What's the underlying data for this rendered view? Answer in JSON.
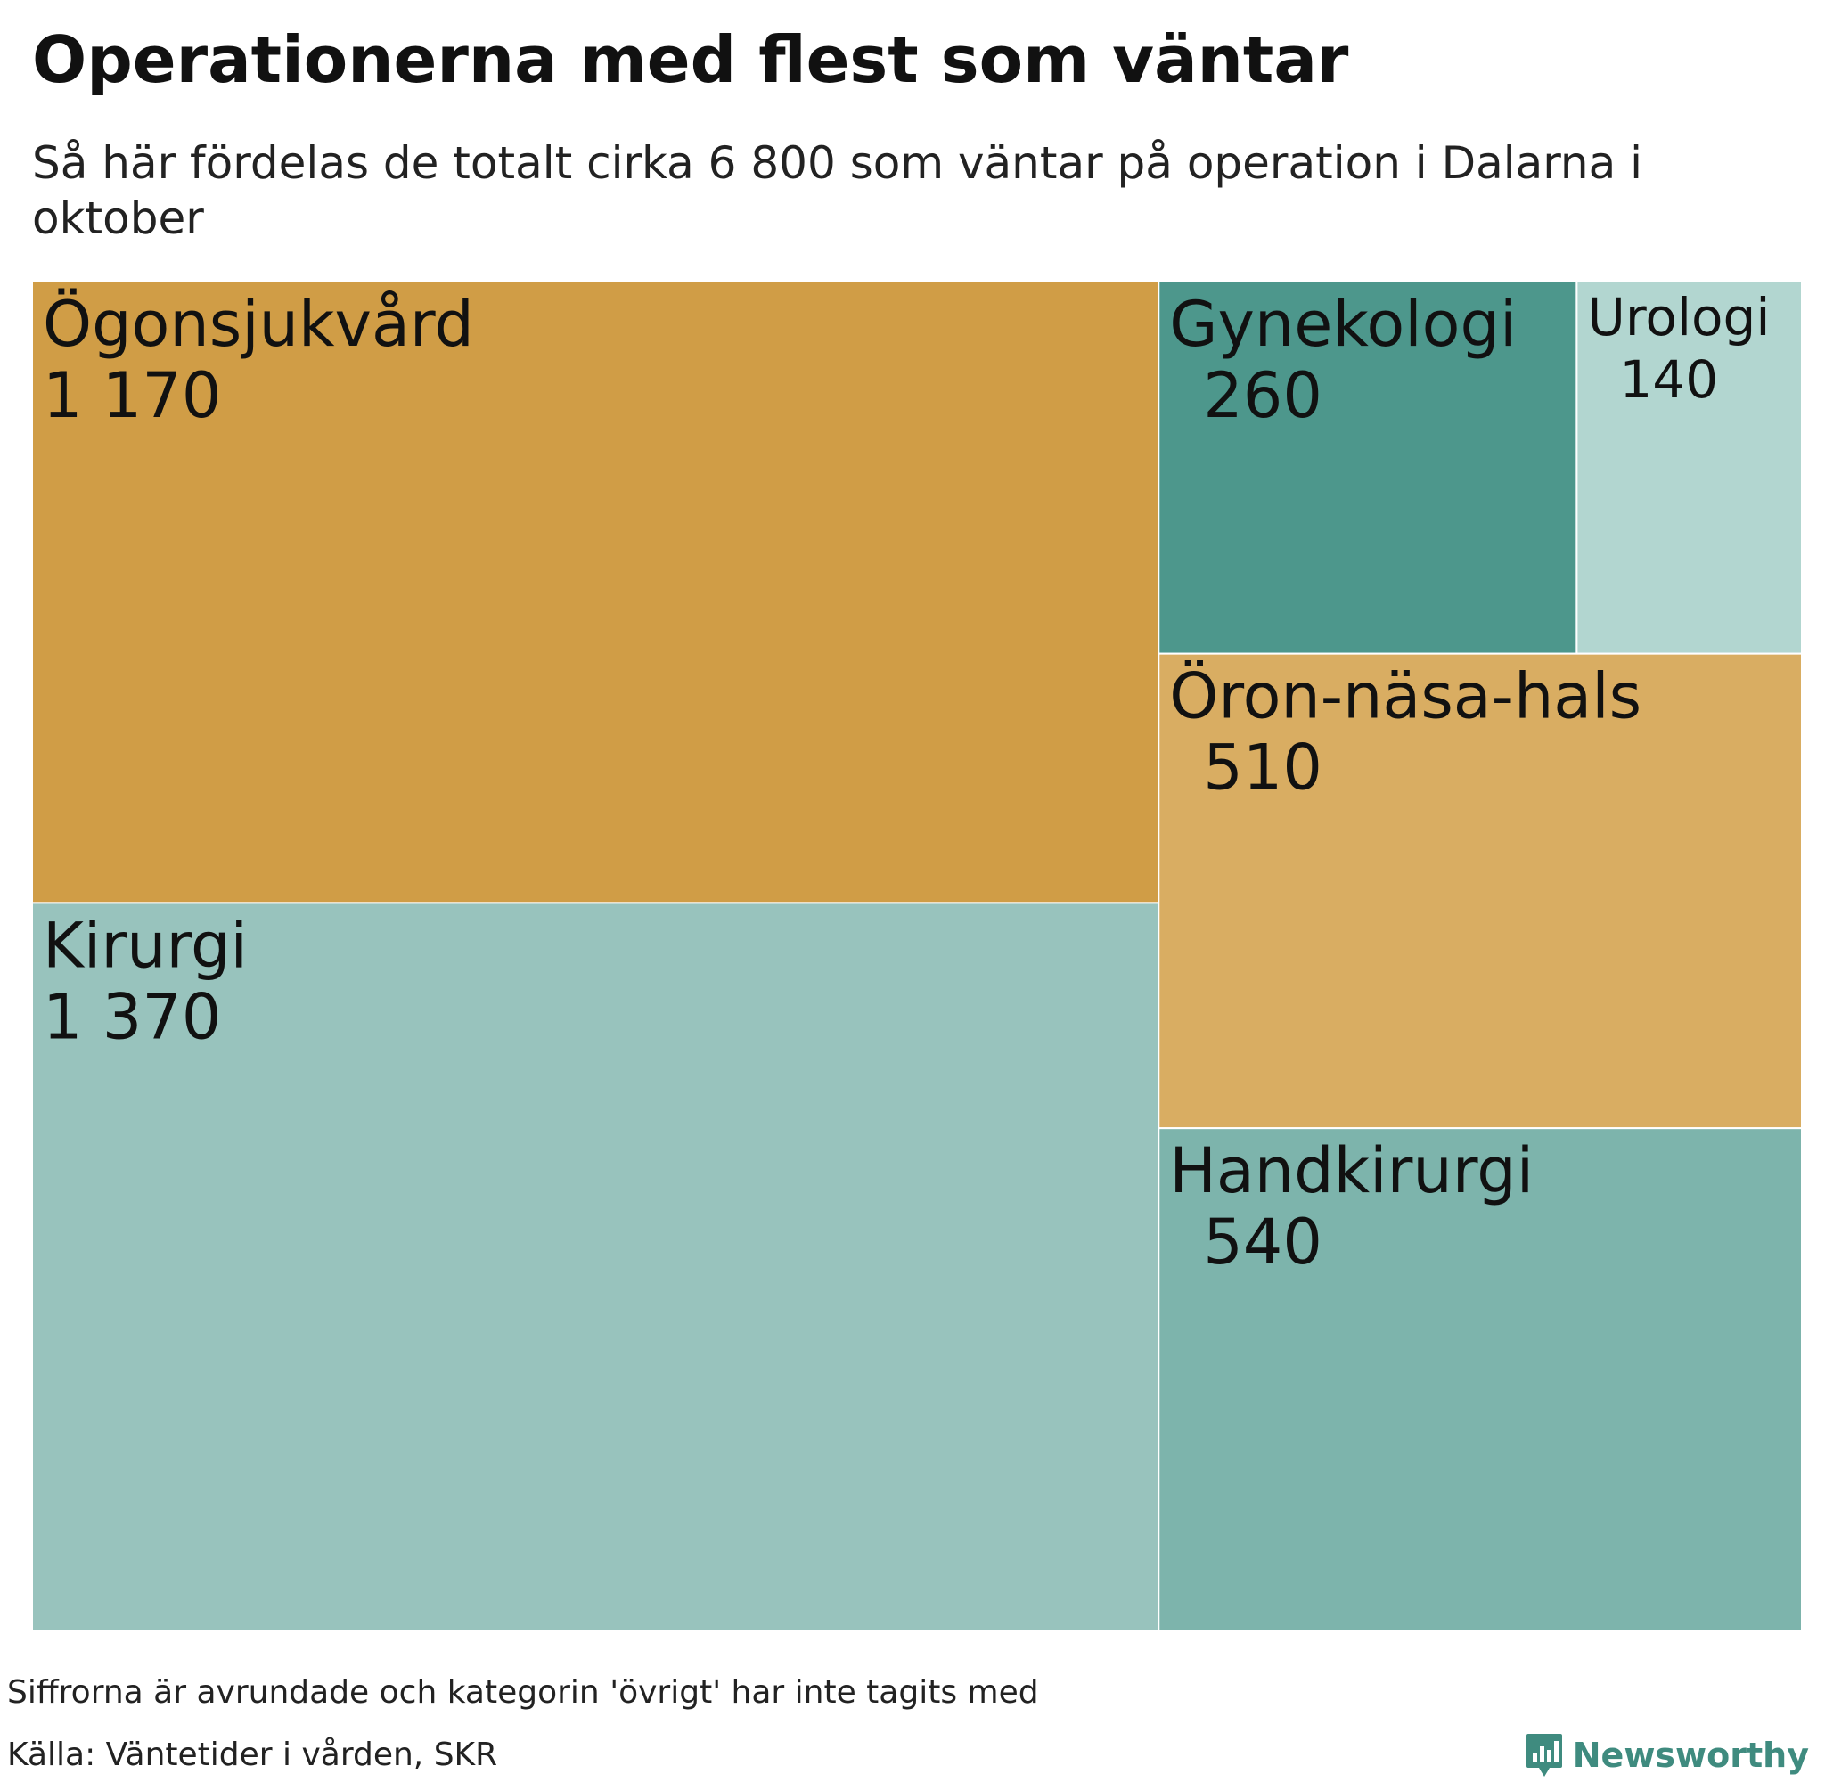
{
  "chart_data": {
    "type": "treemap",
    "title": "Operationerna med flest som väntar",
    "subtitle": "Så här fördelas de totalt cirka 6 800 som väntar på operation i Dalarna i oktober",
    "items": [
      {
        "name": "Ögonsjukvård",
        "value": 1170,
        "value_label": "1 170",
        "color": "#d09d46"
      },
      {
        "name": "Kirurgi",
        "value": 1370,
        "value_label": "1 370",
        "color": "#98c3bd"
      },
      {
        "name": "Gynekologi",
        "value": 260,
        "value_label": "260",
        "color": "#4d978c"
      },
      {
        "name": "Urologi",
        "value": 140,
        "value_label": "140",
        "color": "#b2d6d0"
      },
      {
        "name": "Öron-näsa-hals",
        "value": 510,
        "value_label": "510",
        "color": "#d9ad62"
      },
      {
        "name": "Handkirurgi",
        "value": 540,
        "value_label": "540",
        "color": "#7db4ac"
      }
    ]
  },
  "footer": {
    "note": "Siffrorna är avrundade och kategorin 'övrigt' har inte tagits med",
    "source": "Källa: Väntetider i vården, SKR",
    "brand": "Newsworthy",
    "brand_color": "#3f8b7f"
  }
}
